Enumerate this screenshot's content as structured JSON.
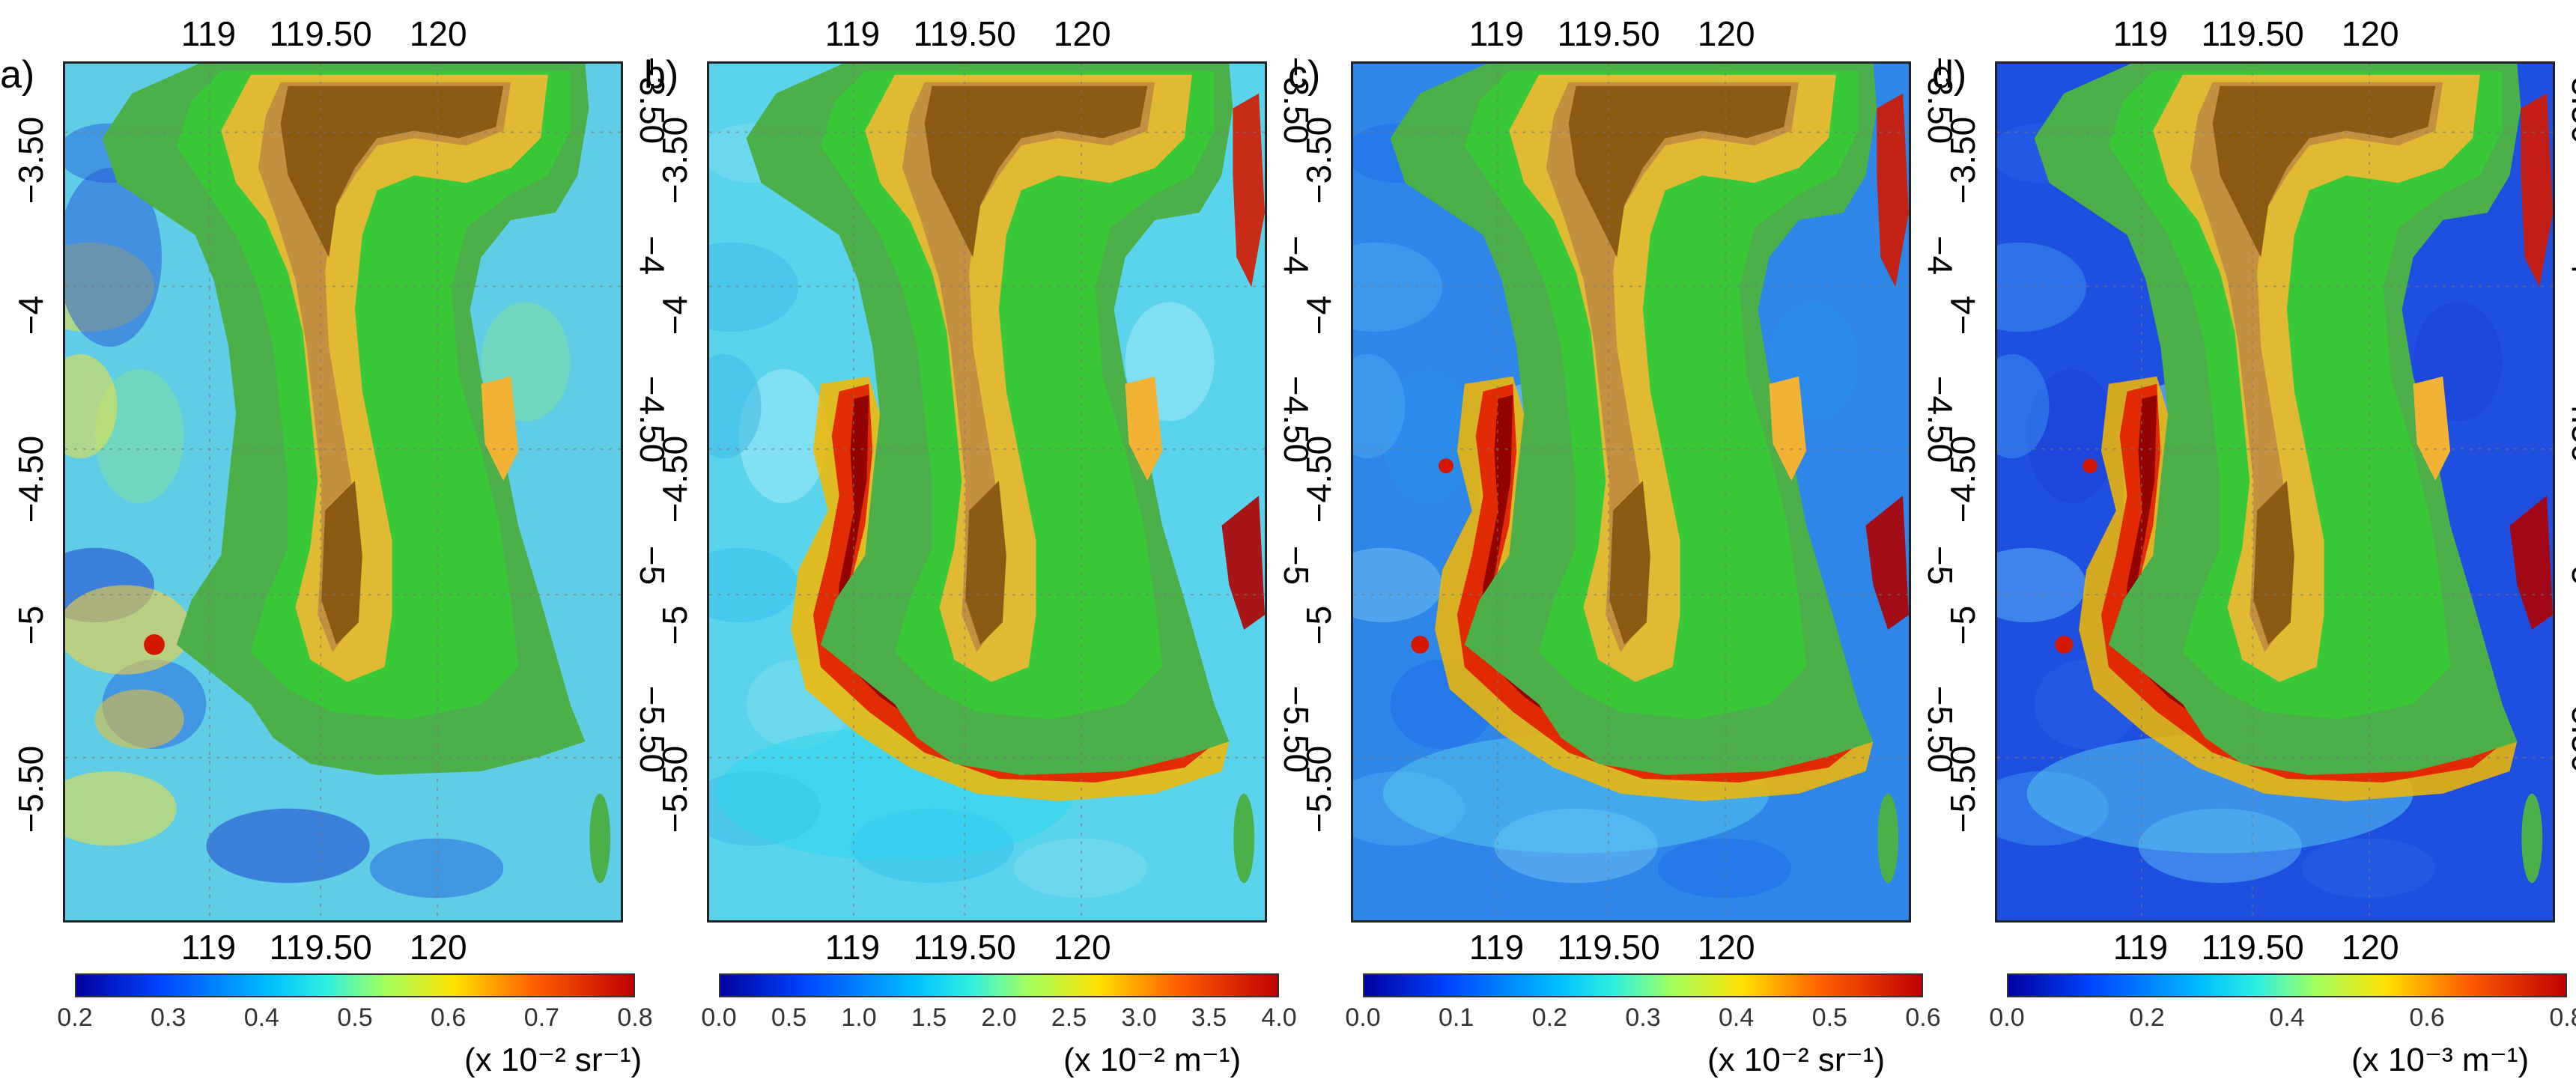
{
  "map_view": {
    "x_tick_labels": [
      "119",
      "119.50",
      "120"
    ],
    "y_tick_labels": [
      "-3.50",
      "-4",
      "-4.50",
      "-5",
      "-5.50"
    ],
    "land_colors": [
      "#4daf4a",
      "#27e127",
      "#b5cc34",
      "#f2b233",
      "#c39040",
      "#8b5a14"
    ],
    "grid": true
  },
  "panels": [
    {
      "label": "a)",
      "colorbar": {
        "ticks": [
          "0.2",
          "0.3",
          "0.4",
          "0.5",
          "0.6",
          "0.7",
          "0.8"
        ],
        "unit": "(x 10⁻² sr⁻¹)",
        "min": 0.2,
        "max": 0.8
      },
      "base_water_color": "#5fcde6",
      "plume": false
    },
    {
      "label": "b)",
      "colorbar": {
        "ticks": [
          "0.0",
          "0.5",
          "1.0",
          "1.5",
          "2.0",
          "2.5",
          "3.0",
          "3.5",
          "4.0"
        ],
        "unit": "(x 10⁻² m⁻¹)",
        "min": 0.0,
        "max": 4.0
      },
      "base_water_color": "#59d4ec",
      "plume": true
    },
    {
      "label": "c)",
      "colorbar": {
        "ticks": [
          "0.0",
          "0.1",
          "0.2",
          "0.3",
          "0.4",
          "0.5",
          "0.6"
        ],
        "unit": "(x 10⁻² sr⁻¹)",
        "min": 0.0,
        "max": 0.6
      },
      "base_water_color": "#2e86e8",
      "plume": true
    },
    {
      "label": "d)",
      "colorbar": {
        "ticks": [
          "0.0",
          "0.2",
          "0.4",
          "0.6",
          "0.8"
        ],
        "unit": "(x 10⁻³ m⁻¹)",
        "min": 0.0,
        "max": 0.8
      },
      "base_water_color": "#1f4fe0",
      "plume": true
    }
  ]
}
